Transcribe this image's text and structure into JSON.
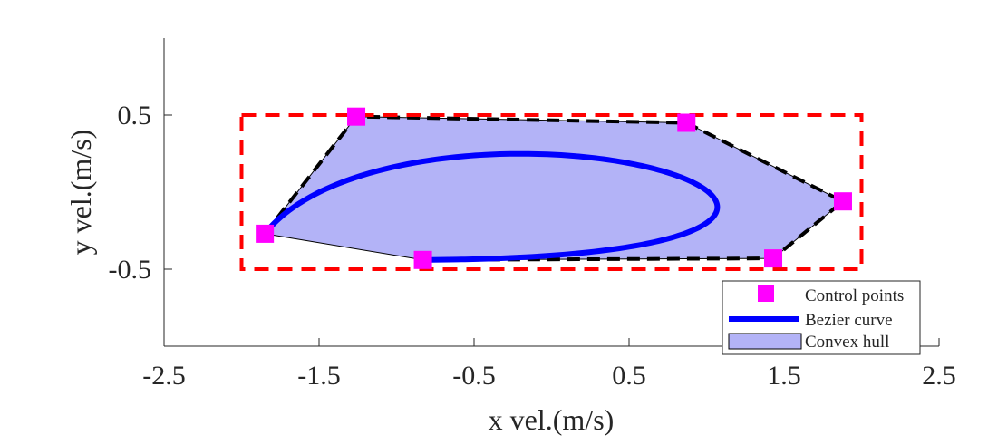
{
  "chart_data": {
    "type": "line",
    "title": "",
    "xlabel": "x vel.(m/s)",
    "ylabel": "y vel.(m/s)",
    "xlim": [
      -2.5,
      2.5
    ],
    "ylim": [
      -1.0,
      1.0
    ],
    "xticks": [
      -2.5,
      -1.5,
      -0.5,
      0.5,
      1.5,
      2.5
    ],
    "xtick_labels": [
      "-2.5",
      "-1.5",
      "-0.5",
      "0.5",
      "1.5",
      "2.5"
    ],
    "yticks": [
      0.5,
      -0.5
    ],
    "ytick_labels": [
      "0.5",
      "-0.5"
    ],
    "grid": false,
    "legend_position": "bottom-right",
    "legend": {
      "control_points": "Control points",
      "bezier_curve": "Bezier curve",
      "convex_hull": "Convex hull"
    },
    "colors": {
      "control_points": "#ff00ff",
      "bezier_curve": "#0000ff",
      "convex_hull_fill": "#b3b3f7",
      "bounding_box": "#ff0000",
      "control_polygon": "#000000"
    },
    "control_points": [
      {
        "x": -1.85,
        "y": -0.27
      },
      {
        "x": -1.26,
        "y": 0.49
      },
      {
        "x": 0.87,
        "y": 0.45
      },
      {
        "x": 1.88,
        "y": -0.06
      },
      {
        "x": 1.43,
        "y": -0.43
      },
      {
        "x": -0.83,
        "y": -0.44
      }
    ],
    "convex_hull": [
      {
        "x": -1.85,
        "y": -0.27
      },
      {
        "x": -1.26,
        "y": 0.49
      },
      {
        "x": 0.87,
        "y": 0.45
      },
      {
        "x": 1.88,
        "y": -0.06
      },
      {
        "x": 1.43,
        "y": -0.43
      },
      {
        "x": -0.83,
        "y": -0.44
      }
    ],
    "bounding_box": {
      "xmin": -2.0,
      "xmax": 2.0,
      "ymin": -0.5,
      "ymax": 0.5
    }
  }
}
